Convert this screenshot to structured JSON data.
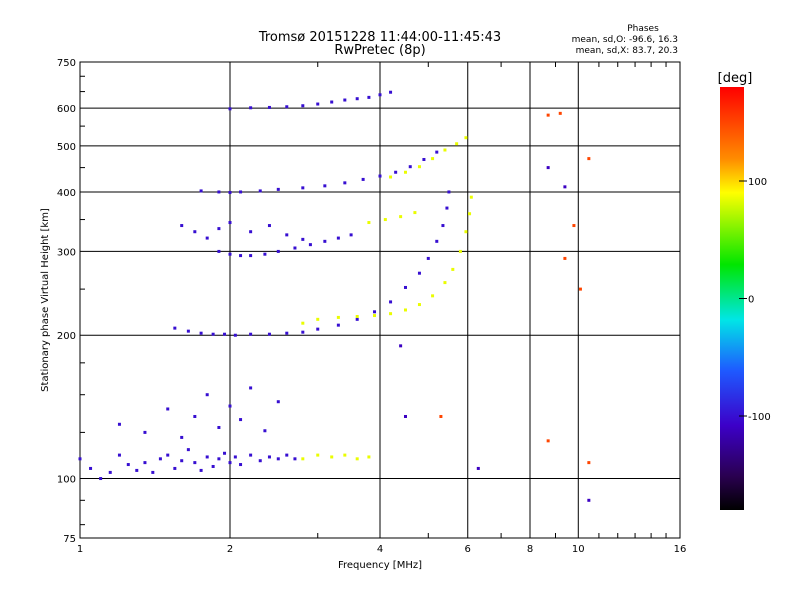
{
  "chart_data": {
    "type": "scatter",
    "title": "Tromsø 20151228 11:44:00-11:45:43",
    "subtitle": "RwPretec (8p)",
    "xlabel": "Frequency [MHz]",
    "ylabel": "Stationary phase Virtual Height [km]",
    "x_scale": "log",
    "y_scale": "log",
    "xlim": [
      1,
      16
    ],
    "ylim": [
      75,
      750
    ],
    "x_ticks": [
      1,
      2,
      4,
      6,
      8,
      10,
      16
    ],
    "x_tick_labels": [
      "1",
      "2",
      "4",
      "6",
      "8",
      "10",
      "16"
    ],
    "y_ticks": [
      75,
      100,
      200,
      300,
      400,
      500,
      600,
      750
    ],
    "y_tick_labels": [
      "75",
      "100",
      "200",
      "300",
      "400",
      "500",
      "600",
      "750"
    ],
    "grid": true,
    "phase_stats": {
      "heading": "Phases",
      "line_o": "mean, sd,O: -96.6, 16.3",
      "line_x": "mean, sd,X: 83.7, 20.3"
    },
    "colorbar": {
      "unit_label": "[deg]",
      "range": [
        -180,
        180
      ],
      "ticks": [
        100,
        0,
        -100
      ],
      "tick_labels": [
        "100",
        "0",
        "-100"
      ]
    },
    "series": [
      {
        "mode": "O",
        "phase_deg": -100,
        "points": [
          [
            1.0,
            110
          ],
          [
            1.05,
            105
          ],
          [
            1.1,
            100
          ],
          [
            1.15,
            103
          ],
          [
            1.2,
            112
          ],
          [
            1.25,
            107
          ],
          [
            1.3,
            104
          ],
          [
            1.35,
            108
          ],
          [
            1.4,
            103
          ],
          [
            1.45,
            110
          ],
          [
            1.5,
            112
          ],
          [
            1.55,
            105
          ],
          [
            1.6,
            109
          ],
          [
            1.65,
            115
          ],
          [
            1.7,
            108
          ],
          [
            1.75,
            104
          ],
          [
            1.8,
            111
          ],
          [
            1.85,
            106
          ],
          [
            1.9,
            110
          ],
          [
            1.95,
            113
          ],
          [
            2.0,
            108
          ],
          [
            2.05,
            111
          ],
          [
            2.1,
            107
          ],
          [
            2.2,
            112
          ],
          [
            2.3,
            109
          ],
          [
            2.4,
            111
          ],
          [
            2.5,
            110
          ],
          [
            2.6,
            112
          ],
          [
            2.7,
            110
          ],
          [
            1.2,
            130
          ],
          [
            1.35,
            125
          ],
          [
            1.5,
            140
          ],
          [
            1.6,
            122
          ],
          [
            1.7,
            135
          ],
          [
            1.8,
            150
          ],
          [
            1.9,
            128
          ],
          [
            2.0,
            142
          ],
          [
            2.1,
            133
          ],
          [
            2.2,
            155
          ],
          [
            2.35,
            126
          ],
          [
            2.5,
            145
          ],
          [
            1.55,
            207
          ],
          [
            1.65,
            204
          ],
          [
            1.75,
            202
          ],
          [
            1.85,
            201
          ],
          [
            1.95,
            201
          ],
          [
            2.05,
            200
          ],
          [
            2.2,
            201
          ],
          [
            2.4,
            201
          ],
          [
            2.6,
            202
          ],
          [
            2.8,
            203
          ],
          [
            3.0,
            206
          ],
          [
            3.3,
            210
          ],
          [
            3.6,
            216
          ],
          [
            3.9,
            224
          ],
          [
            4.2,
            235
          ],
          [
            4.5,
            252
          ],
          [
            4.8,
            270
          ],
          [
            5.0,
            290
          ],
          [
            5.2,
            315
          ],
          [
            5.35,
            340
          ],
          [
            5.45,
            370
          ],
          [
            5.5,
            400
          ],
          [
            1.9,
            300
          ],
          [
            2.0,
            296
          ],
          [
            2.1,
            294
          ],
          [
            2.2,
            294
          ],
          [
            2.35,
            296
          ],
          [
            2.5,
            300
          ],
          [
            2.7,
            305
          ],
          [
            2.9,
            310
          ],
          [
            3.1,
            315
          ],
          [
            3.3,
            320
          ],
          [
            3.5,
            325
          ],
          [
            1.6,
            340
          ],
          [
            1.7,
            330
          ],
          [
            1.8,
            320
          ],
          [
            1.9,
            335
          ],
          [
            2.0,
            345
          ],
          [
            2.2,
            330
          ],
          [
            2.4,
            340
          ],
          [
            2.6,
            325
          ],
          [
            2.8,
            318
          ],
          [
            1.75,
            402
          ],
          [
            1.9,
            400
          ],
          [
            2.0,
            399
          ],
          [
            2.1,
            400
          ],
          [
            2.3,
            402
          ],
          [
            2.5,
            405
          ],
          [
            2.8,
            408
          ],
          [
            3.1,
            412
          ],
          [
            3.4,
            418
          ],
          [
            3.7,
            425
          ],
          [
            4.0,
            432
          ],
          [
            4.3,
            440
          ],
          [
            4.6,
            452
          ],
          [
            4.9,
            468
          ],
          [
            5.2,
            485
          ],
          [
            2.0,
            598
          ],
          [
            2.2,
            601
          ],
          [
            2.4,
            602
          ],
          [
            2.6,
            604
          ],
          [
            2.8,
            607
          ],
          [
            3.0,
            612
          ],
          [
            3.2,
            618
          ],
          [
            3.4,
            624
          ],
          [
            3.6,
            628
          ],
          [
            3.8,
            632
          ],
          [
            4.0,
            640
          ],
          [
            4.2,
            648
          ]
        ]
      },
      {
        "mode": "X",
        "phase_deg": 85,
        "points": [
          [
            2.8,
            110
          ],
          [
            3.0,
            112
          ],
          [
            3.2,
            111
          ],
          [
            3.4,
            112
          ],
          [
            3.6,
            110
          ],
          [
            3.8,
            111
          ],
          [
            2.8,
            212
          ],
          [
            3.0,
            216
          ],
          [
            3.3,
            218
          ],
          [
            3.6,
            219
          ],
          [
            3.9,
            220
          ],
          [
            4.2,
            222
          ],
          [
            4.5,
            226
          ],
          [
            4.8,
            232
          ],
          [
            5.1,
            242
          ],
          [
            5.4,
            258
          ],
          [
            5.6,
            275
          ],
          [
            5.8,
            300
          ],
          [
            5.95,
            330
          ],
          [
            6.05,
            360
          ],
          [
            6.1,
            390
          ],
          [
            3.8,
            345
          ],
          [
            4.1,
            350
          ],
          [
            4.4,
            355
          ],
          [
            4.7,
            362
          ],
          [
            4.2,
            430
          ],
          [
            4.5,
            440
          ],
          [
            4.8,
            452
          ],
          [
            5.1,
            470
          ],
          [
            5.4,
            490
          ],
          [
            5.7,
            505
          ],
          [
            5.95,
            520
          ]
        ]
      },
      {
        "mode": "X",
        "phase_deg": 150,
        "points": [
          [
            8.7,
            580
          ],
          [
            9.2,
            585
          ],
          [
            10.5,
            470
          ],
          [
            8.7,
            120
          ],
          [
            10.5,
            108
          ],
          [
            5.3,
            135
          ],
          [
            9.8,
            340
          ],
          [
            9.4,
            290
          ],
          [
            10.1,
            250
          ]
        ]
      },
      {
        "mode": "O",
        "phase_deg": -110,
        "points": [
          [
            6.3,
            105
          ],
          [
            10.5,
            90
          ],
          [
            8.7,
            450
          ],
          [
            9.4,
            410
          ],
          [
            4.5,
            135
          ],
          [
            4.4,
            190
          ]
        ]
      }
    ]
  }
}
